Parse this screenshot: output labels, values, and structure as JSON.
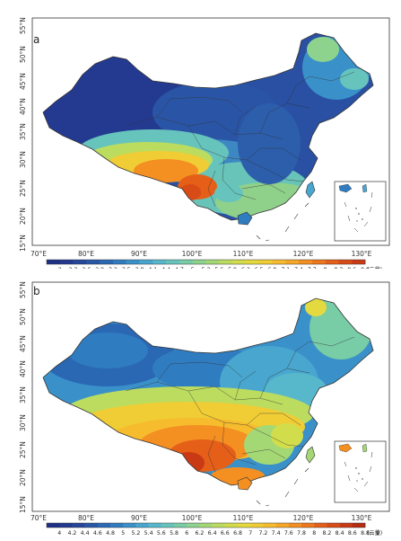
{
  "panels": [
    {
      "label": "a",
      "lat_ticks": [
        "55°N",
        "50°N",
        "45°N",
        "40°N",
        "35°N",
        "30°N",
        "25°N",
        "20°N",
        "15°N"
      ],
      "lon_ticks": [
        "70°E",
        "80°E",
        "90°E",
        "100°E",
        "110°E",
        "120°E",
        "130°E"
      ],
      "colorbar": {
        "ticks": [
          "2",
          "2.3",
          "2.6",
          "2.9",
          "3.2",
          "3.5",
          "3.8",
          "4.1",
          "4.4",
          "4.7",
          "5",
          "5.3",
          "5.6",
          "5.9",
          "6.2",
          "6.5",
          "6.8",
          "7.1",
          "7.4",
          "7.7",
          "8",
          "8.3",
          "8.6",
          "8.9"
        ],
        "unit": "(云量)",
        "colors": [
          "#1e2f86",
          "#22398f",
          "#254699",
          "#2856a6",
          "#2a68b4",
          "#2f7cc0",
          "#3a91c9",
          "#48a6cf",
          "#57b8cc",
          "#66c4bd",
          "#78cca6",
          "#8dd38d",
          "#a4d874",
          "#bcdc5f",
          "#d2dd4c",
          "#e4d93f",
          "#f0cd35",
          "#f6bc2e",
          "#f7a728",
          "#f48f22",
          "#ee771d",
          "#e55f19",
          "#d94b16",
          "#c93a14"
        ]
      }
    },
    {
      "label": "b",
      "lat_ticks": [
        "55°N",
        "50°N",
        "45°N",
        "40°N",
        "35°N",
        "30°N",
        "25°N",
        "20°N",
        "15°N"
      ],
      "lon_ticks": [
        "70°E",
        "80°E",
        "90°E",
        "100°E",
        "110°E",
        "120°E",
        "130°E"
      ],
      "colorbar": {
        "ticks": [
          "4",
          "4.2",
          "4.4",
          "4.6",
          "4.8",
          "5",
          "5.2",
          "5.4",
          "5.6",
          "5.8",
          "6",
          "6.2",
          "6.4",
          "6.6",
          "6.8",
          "7",
          "7.2",
          "7.4",
          "7.6",
          "7.8",
          "8",
          "8.2",
          "8.4",
          "8.6",
          "8.8",
          "9"
        ],
        "unit": "(云量)",
        "colors": [
          "#1e2f86",
          "#22398f",
          "#254699",
          "#2856a6",
          "#2a68b4",
          "#2f7cc0",
          "#3a91c9",
          "#48a6cf",
          "#57b8cc",
          "#66c4bd",
          "#78cca6",
          "#8dd38d",
          "#a4d874",
          "#bcdc5f",
          "#d2dd4c",
          "#e4d93f",
          "#f0cd35",
          "#f6bc2e",
          "#f7a728",
          "#f48f22",
          "#ee771d",
          "#e55f19",
          "#d94b16",
          "#c93a14",
          "#b52c12"
        ]
      }
    }
  ]
}
